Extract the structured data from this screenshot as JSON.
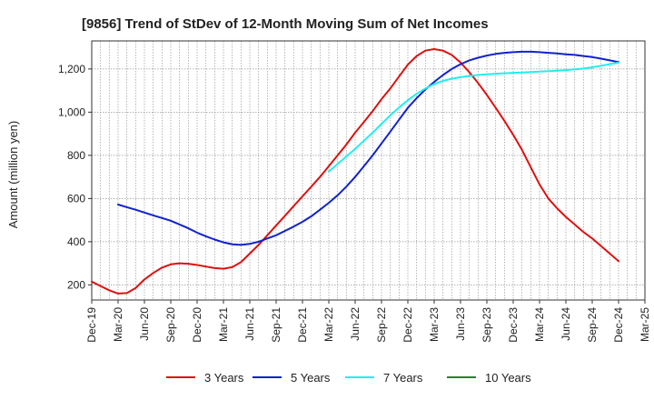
{
  "chart_data": {
    "type": "line",
    "title": "[9856]  Trend of StDev of 12-Month Moving Sum of Net Incomes",
    "xlabel": "",
    "ylabel": "Amount (million yen)",
    "x_ticks": [
      "Dec-19",
      "Mar-20",
      "Jun-20",
      "Sep-20",
      "Dec-20",
      "Mar-21",
      "Jun-21",
      "Sep-21",
      "Dec-21",
      "Mar-22",
      "Jun-22",
      "Sep-22",
      "Dec-22",
      "Mar-23",
      "Jun-23",
      "Sep-23",
      "Dec-23",
      "Mar-24",
      "Jun-24",
      "Sep-24",
      "Dec-24",
      "Mar-25"
    ],
    "y_ticks": [
      200,
      400,
      600,
      800,
      "1,000",
      "1,200"
    ],
    "ylim": [
      130,
      1330
    ],
    "grid": true,
    "legend_position": "bottom",
    "series": [
      {
        "name": "3 Years",
        "color": "#dd1111",
        "x": [
          "2019-12",
          "2020-01",
          "2020-02",
          "2020-03",
          "2020-04",
          "2020-05",
          "2020-06",
          "2020-07",
          "2020-08",
          "2020-09",
          "2020-10",
          "2020-11",
          "2020-12",
          "2021-01",
          "2021-02",
          "2021-03",
          "2021-04",
          "2021-05",
          "2021-06",
          "2021-07",
          "2021-08",
          "2021-09",
          "2021-10",
          "2021-11",
          "2021-12",
          "2022-01",
          "2022-02",
          "2022-03",
          "2022-04",
          "2022-05",
          "2022-06",
          "2022-07",
          "2022-08",
          "2022-09",
          "2022-10",
          "2022-11",
          "2022-12",
          "2023-01",
          "2023-02",
          "2023-03",
          "2023-04",
          "2023-05",
          "2023-06",
          "2023-07",
          "2023-08",
          "2023-09",
          "2023-10",
          "2023-11",
          "2023-12",
          "2024-01",
          "2024-02",
          "2024-03",
          "2024-04",
          "2024-05",
          "2024-06",
          "2024-07",
          "2024-08",
          "2024-09",
          "2024-10",
          "2024-11",
          "2024-12"
        ],
        "values": [
          215,
          195,
          175,
          160,
          162,
          185,
          225,
          255,
          280,
          295,
          300,
          298,
          292,
          285,
          278,
          275,
          282,
          305,
          345,
          385,
          430,
          475,
          520,
          565,
          610,
          655,
          700,
          750,
          800,
          850,
          905,
          955,
          1005,
          1060,
          1110,
          1165,
          1220,
          1260,
          1285,
          1292,
          1285,
          1265,
          1230,
          1185,
          1135,
          1080,
          1020,
          960,
          895,
          825,
          745,
          665,
          600,
          555,
          515,
          480,
          445,
          415,
          380,
          345,
          310
        ]
      },
      {
        "name": "5 Years",
        "color": "#1122cc",
        "x": [
          "2020-03",
          "2020-04",
          "2020-05",
          "2020-06",
          "2020-07",
          "2020-08",
          "2020-09",
          "2020-10",
          "2020-11",
          "2020-12",
          "2021-01",
          "2021-02",
          "2021-03",
          "2021-04",
          "2021-05",
          "2021-06",
          "2021-07",
          "2021-08",
          "2021-09",
          "2021-10",
          "2021-11",
          "2021-12",
          "2022-01",
          "2022-02",
          "2022-03",
          "2022-04",
          "2022-05",
          "2022-06",
          "2022-07",
          "2022-08",
          "2022-09",
          "2022-10",
          "2022-11",
          "2022-12",
          "2023-01",
          "2023-02",
          "2023-03",
          "2023-04",
          "2023-05",
          "2023-06",
          "2023-07",
          "2023-08",
          "2023-09",
          "2023-10",
          "2023-11",
          "2023-12",
          "2024-01",
          "2024-02",
          "2024-03",
          "2024-04",
          "2024-05",
          "2024-06",
          "2024-07",
          "2024-08",
          "2024-09",
          "2024-10",
          "2024-11",
          "2024-12"
        ],
        "values": [
          572,
          560,
          548,
          535,
          522,
          510,
          497,
          480,
          462,
          442,
          425,
          410,
          397,
          388,
          385,
          390,
          400,
          415,
          430,
          450,
          470,
          492,
          518,
          548,
          580,
          615,
          655,
          700,
          750,
          800,
          855,
          910,
          965,
          1020,
          1065,
          1105,
          1140,
          1172,
          1200,
          1222,
          1240,
          1252,
          1262,
          1270,
          1275,
          1278,
          1280,
          1280,
          1278,
          1275,
          1272,
          1268,
          1265,
          1260,
          1255,
          1248,
          1240,
          1232
        ]
      },
      {
        "name": "7 Years",
        "color": "#22eeee",
        "x": [
          "2022-03",
          "2022-04",
          "2022-05",
          "2022-06",
          "2022-07",
          "2022-08",
          "2022-09",
          "2022-10",
          "2022-11",
          "2022-12",
          "2023-01",
          "2023-02",
          "2023-03",
          "2023-04",
          "2023-05",
          "2023-06",
          "2023-07",
          "2023-08",
          "2023-09",
          "2023-10",
          "2023-11",
          "2023-12",
          "2024-01",
          "2024-02",
          "2024-03",
          "2024-04",
          "2024-05",
          "2024-06",
          "2024-07",
          "2024-08",
          "2024-09",
          "2024-10",
          "2024-11",
          "2024-12"
        ],
        "values": [
          725,
          760,
          795,
          830,
          868,
          905,
          945,
          985,
          1022,
          1055,
          1085,
          1110,
          1130,
          1145,
          1155,
          1162,
          1168,
          1172,
          1175,
          1178,
          1180,
          1182,
          1184,
          1186,
          1188,
          1190,
          1192,
          1195,
          1198,
          1202,
          1208,
          1215,
          1222,
          1230
        ]
      },
      {
        "name": "10 Years",
        "color": "#228822",
        "x": [],
        "values": []
      }
    ]
  }
}
